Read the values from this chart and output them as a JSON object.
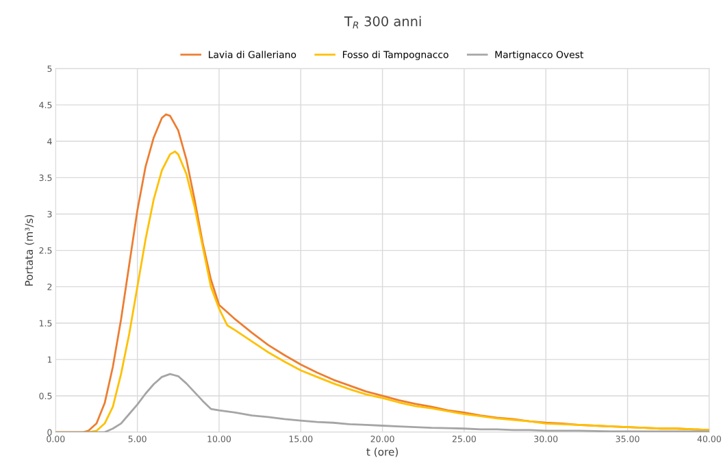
{
  "chart_data": {
    "type": "line",
    "title": "T$_{R}$ 300 anni",
    "xlabel": "t (ore)",
    "ylabel": "Portata (m³/s)",
    "legend": "top",
    "grid": true,
    "marker": "none",
    "line_style": "solid",
    "xlim": [
      0,
      40
    ],
    "ylim": [
      0,
      5
    ],
    "xticks": [
      {
        "value": 0,
        "label": "0.00"
      },
      {
        "value": 5,
        "label": "5.00"
      },
      {
        "value": 10,
        "label": "10.00"
      },
      {
        "value": 15,
        "label": "15.00"
      },
      {
        "value": 20,
        "label": "20.00"
      },
      {
        "value": 25,
        "label": "25.00"
      },
      {
        "value": 30,
        "label": "30.00"
      },
      {
        "value": 35,
        "label": "35.00"
      },
      {
        "value": 40,
        "label": "40.00"
      }
    ],
    "yticks": [
      0,
      0.5,
      1,
      1.5,
      2,
      2.5,
      3,
      3.5,
      4,
      4.5,
      5
    ],
    "series": [
      {
        "name": "Lavia di Galleriano",
        "color": "#ed7d31",
        "x": [
          0,
          1,
          1.7,
          2,
          2.5,
          3,
          3.5,
          4,
          4.5,
          5,
          5.5,
          6,
          6.5,
          6.75,
          7,
          7.5,
          8,
          8.5,
          9,
          9.5,
          10,
          10.5,
          11,
          12,
          13,
          14,
          15,
          16,
          17,
          18,
          19,
          20,
          21,
          22,
          23,
          24,
          25,
          26,
          27,
          28,
          29,
          30,
          31,
          32,
          33,
          34,
          35,
          36,
          37,
          38,
          39,
          40
        ],
        "values": [
          0,
          0,
          0,
          0.02,
          0.12,
          0.4,
          0.9,
          1.55,
          2.3,
          3.05,
          3.65,
          4.05,
          4.32,
          4.37,
          4.35,
          4.15,
          3.75,
          3.2,
          2.6,
          2.1,
          1.75,
          1.65,
          1.55,
          1.37,
          1.2,
          1.06,
          0.93,
          0.82,
          0.72,
          0.64,
          0.56,
          0.5,
          0.44,
          0.39,
          0.35,
          0.3,
          0.27,
          0.23,
          0.2,
          0.18,
          0.15,
          0.13,
          0.12,
          0.1,
          0.09,
          0.08,
          0.07,
          0.06,
          0.05,
          0.05,
          0.04,
          0.03
        ]
      },
      {
        "name": "Fosso di Tampognacco",
        "color": "#ffc000",
        "x": [
          0,
          2,
          2.5,
          3,
          3.5,
          4,
          4.5,
          5,
          5.5,
          6,
          6.5,
          7,
          7.3,
          7.5,
          8,
          8.5,
          9,
          9.5,
          10,
          10.5,
          11,
          12,
          13,
          14,
          15,
          16,
          17,
          18,
          19,
          20,
          21,
          22,
          23,
          24,
          25,
          26,
          27,
          28,
          29,
          30,
          31,
          32,
          33,
          34,
          35,
          36,
          37,
          38,
          39,
          40
        ],
        "values": [
          0,
          0,
          0.02,
          0.12,
          0.35,
          0.8,
          1.35,
          2.0,
          2.65,
          3.2,
          3.6,
          3.82,
          3.86,
          3.82,
          3.55,
          3.1,
          2.55,
          2.0,
          1.7,
          1.47,
          1.4,
          1.25,
          1.1,
          0.97,
          0.85,
          0.76,
          0.67,
          0.59,
          0.52,
          0.47,
          0.41,
          0.36,
          0.33,
          0.29,
          0.25,
          0.22,
          0.19,
          0.17,
          0.15,
          0.12,
          0.11,
          0.1,
          0.09,
          0.08,
          0.07,
          0.06,
          0.05,
          0.05,
          0.04,
          0.03
        ]
      },
      {
        "name": "Martignacco Ovest",
        "color": "#a5a5a5",
        "x": [
          0,
          3,
          3.5,
          4,
          4.5,
          5,
          5.5,
          6,
          6.5,
          7,
          7.5,
          8,
          8.5,
          9,
          9.5,
          10,
          11,
          12,
          13,
          14,
          15,
          16,
          17,
          18,
          19,
          20,
          21,
          22,
          23,
          24,
          25,
          26,
          27,
          28,
          29,
          30,
          32,
          34,
          40
        ],
        "values": [
          0,
          0,
          0.05,
          0.12,
          0.25,
          0.38,
          0.53,
          0.66,
          0.76,
          0.8,
          0.77,
          0.67,
          0.55,
          0.43,
          0.32,
          0.3,
          0.27,
          0.23,
          0.21,
          0.18,
          0.16,
          0.14,
          0.13,
          0.11,
          0.1,
          0.09,
          0.08,
          0.07,
          0.06,
          0.055,
          0.05,
          0.04,
          0.04,
          0.03,
          0.03,
          0.02,
          0.02,
          0.01,
          0.01
        ]
      }
    ]
  }
}
